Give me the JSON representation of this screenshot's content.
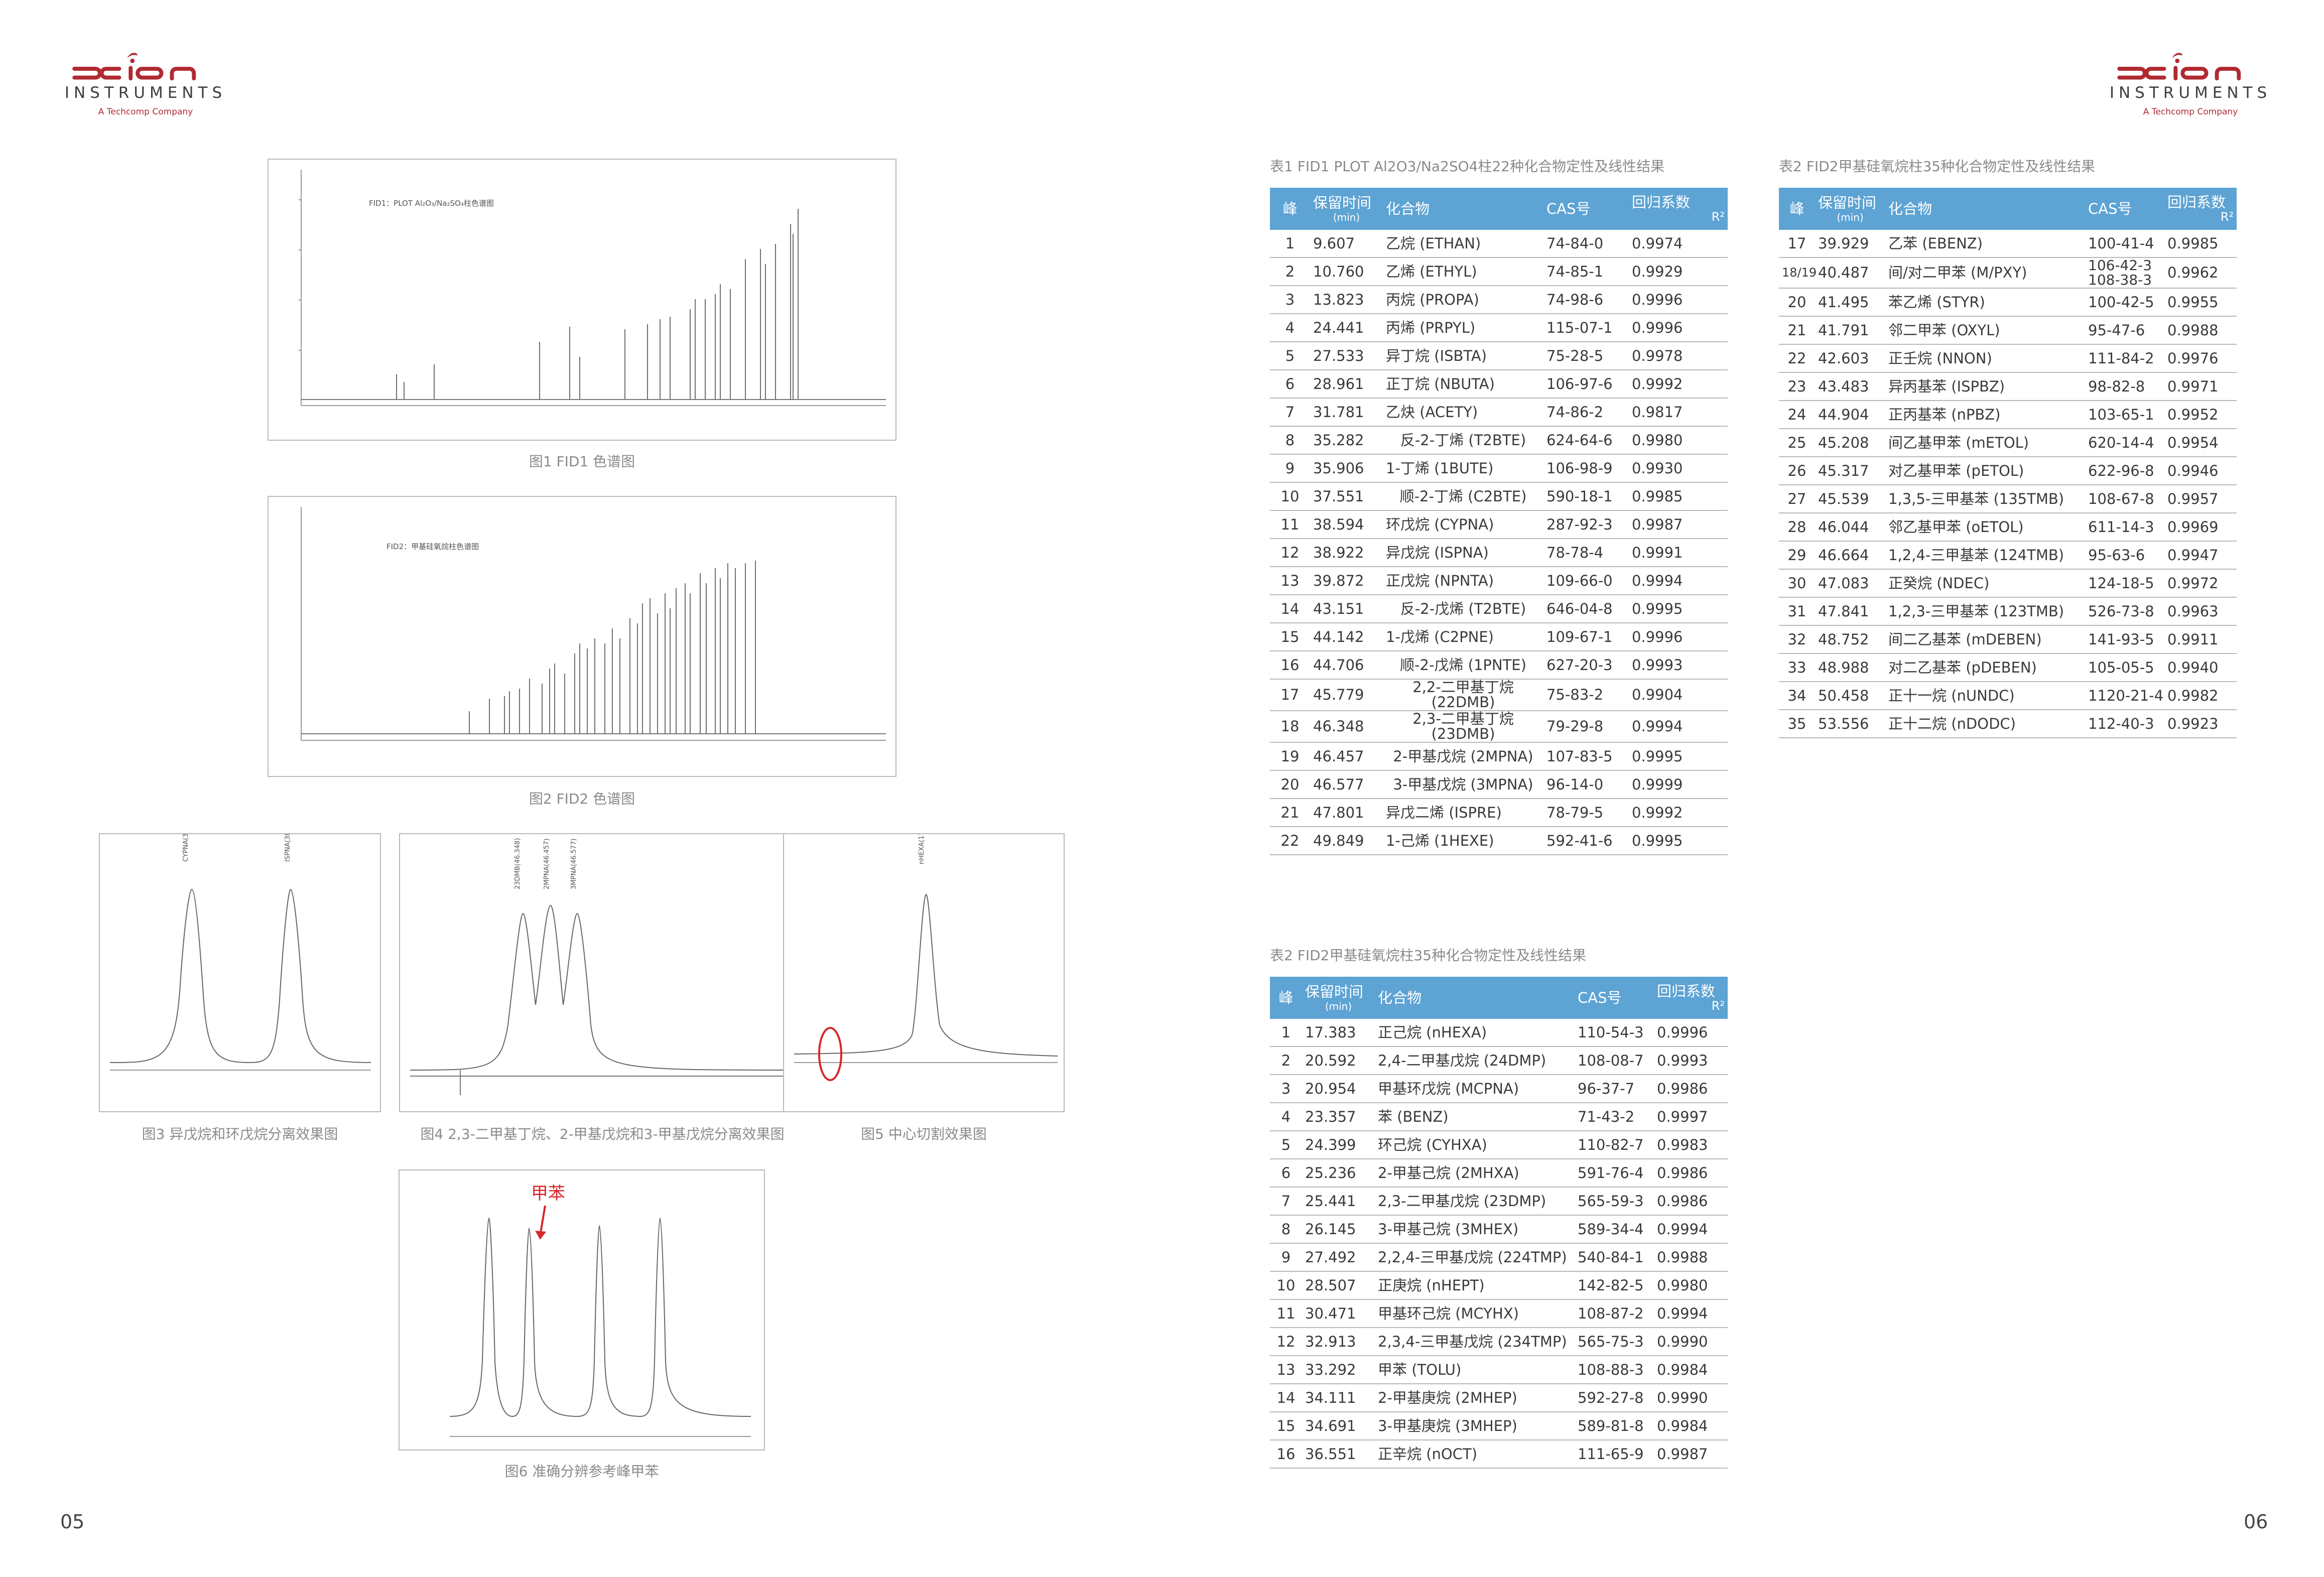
{
  "brand": {
    "name": "scion",
    "sub": "INSTRUMENTS",
    "tagline": "A Techcomp Company",
    "color": "#b02a32"
  },
  "pages": {
    "left": "05",
    "right": "06"
  },
  "figures": {
    "fig1": {
      "caption": "图1 FID1 色谱图",
      "label": "FID1：PLOT Al₂O₃/Na₂SO₄柱色谱图"
    },
    "fig2": {
      "caption": "图2 FID2 色谱图",
      "label": "FID2：甲基硅氧烷柱色谱图"
    },
    "fig3": {
      "caption": "图3 异戊烷和环戊烷分离效果图",
      "peaks": [
        "ISPNA(38.922)",
        "CYPNA(38.594)"
      ]
    },
    "fig4": {
      "caption": "图4 2,3-二甲基丁烷、2-甲基戊烷和3-甲基戊烷分离效果图",
      "peaks": [
        "23DMB(46.348)",
        "2MPNA(46.457)",
        "3MPNA(46.577)"
      ]
    },
    "fig5": {
      "caption": "图5 中心切割效果图",
      "peaks": [
        "nHEXA(17.383)"
      ]
    },
    "fig6": {
      "caption": "图6 准确分辨参考峰甲苯",
      "annotation": "甲苯"
    }
  },
  "table1": {
    "title": "表1  FID1 PLOT Al2O3/Na2SO4柱22种化合物定性及线性结果",
    "headers": {
      "peak": "峰",
      "rt": "保留时间",
      "rt_unit": "(min)",
      "compound": "化合物",
      "cas": "CAS号",
      "r2": "回归系数",
      "r2_sym": "R²"
    },
    "rows": [
      [
        "1",
        "9.607",
        "乙烷 (ETHAN)",
        "74-84-0",
        "0.9974"
      ],
      [
        "2",
        "10.760",
        "乙烯 (ETHYL)",
        "74-85-1",
        "0.9929"
      ],
      [
        "3",
        "13.823",
        "丙烷 (PROPA)",
        "74-98-6",
        "0.9996"
      ],
      [
        "4",
        "24.441",
        "丙烯 (PRPYL)",
        "115-07-1",
        "0.9996"
      ],
      [
        "5",
        "27.533",
        "异丁烷 (ISBTA)",
        "75-28-5",
        "0.9978"
      ],
      [
        "6",
        "28.961",
        "正丁烷 (NBUTA)",
        "106-97-6",
        "0.9992"
      ],
      [
        "7",
        "31.781",
        "乙炔 (ACETY)",
        "74-86-2",
        "0.9817"
      ],
      [
        "8",
        "35.282",
        "反-2-丁烯 (T2BTE)",
        "624-64-6",
        "0.9980"
      ],
      [
        "9",
        "35.906",
        "1-丁烯 (1BUTE)",
        "106-98-9",
        "0.9930"
      ],
      [
        "10",
        "37.551",
        "顺-2-丁烯 (C2BTE)",
        "590-18-1",
        "0.9985"
      ],
      [
        "11",
        "38.594",
        "环戊烷 (CYPNA)",
        "287-92-3",
        "0.9987"
      ],
      [
        "12",
        "38.922",
        "异戊烷 (ISPNA)",
        "78-78-4",
        "0.9991"
      ],
      [
        "13",
        "39.872",
        "正戊烷 (NPNTA)",
        "109-66-0",
        "0.9994"
      ],
      [
        "14",
        "43.151",
        "反-2-戊烯 (T2BTE)",
        "646-04-8",
        "0.9995"
      ],
      [
        "15",
        "44.142",
        "1-戊烯 (C2PNE)",
        "109-67-1",
        "0.9996"
      ],
      [
        "16",
        "44.706",
        "顺-2-戊烯 (1PNTE)",
        "627-20-3",
        "0.9993"
      ],
      [
        "17",
        "45.779",
        "2,2-二甲基丁烷 (22DMB)",
        "75-83-2",
        "0.9904"
      ],
      [
        "18",
        "46.348",
        "2,3-二甲基丁烷 (23DMB)",
        "79-29-8",
        "0.9994"
      ],
      [
        "19",
        "46.457",
        "2-甲基戊烷 (2MPNA)",
        "107-83-5",
        "0.9995"
      ],
      [
        "20",
        "46.577",
        "3-甲基戊烷 (3MPNA)",
        "96-14-0",
        "0.9999"
      ],
      [
        "21",
        "47.801",
        "异戊二烯 (ISPRE)",
        "78-79-5",
        "0.9992"
      ],
      [
        "22",
        "49.849",
        "1-己烯 (1HEXE)",
        "592-41-6",
        "0.9995"
      ]
    ]
  },
  "table2": {
    "title": "表2  FID2甲基硅氧烷柱35种化合物定性及线性结果",
    "headers": {
      "peak": "峰",
      "rt": "保留时间",
      "rt_unit": "(min)",
      "compound": "化合物",
      "cas": "CAS号",
      "r2": "回归系数",
      "r2_sym": "R²"
    },
    "rows": [
      [
        "1",
        "17.383",
        "正己烷 (nHEXA)",
        "110-54-3",
        "0.9996"
      ],
      [
        "2",
        "20.592",
        "2,4-二甲基戊烷 (24DMP)",
        "108-08-7",
        "0.9993"
      ],
      [
        "3",
        "20.954",
        "甲基环戊烷 (MCPNA)",
        "96-37-7",
        "0.9986"
      ],
      [
        "4",
        "23.357",
        "苯 (BENZ)",
        "71-43-2",
        "0.9997"
      ],
      [
        "5",
        "24.399",
        "环己烷 (CYHXA)",
        "110-82-7",
        "0.9983"
      ],
      [
        "6",
        "25.236",
        "2-甲基己烷 (2MHXA)",
        "591-76-4",
        "0.9986"
      ],
      [
        "7",
        "25.441",
        "2,3-二甲基戊烷 (23DMP)",
        "565-59-3",
        "0.9986"
      ],
      [
        "8",
        "26.145",
        "3-甲基己烷 (3MHEX)",
        "589-34-4",
        "0.9994"
      ],
      [
        "9",
        "27.492",
        "2,2,4-三甲基戊烷 (224TMP)",
        "540-84-1",
        "0.9988"
      ],
      [
        "10",
        "28.507",
        "正庚烷 (nHEPT)",
        "142-82-5",
        "0.9980"
      ],
      [
        "11",
        "30.471",
        "甲基环己烷 (MCYHX)",
        "108-87-2",
        "0.9994"
      ],
      [
        "12",
        "32.913",
        "2,3,4-三甲基戊烷 (234TMP)",
        "565-75-3",
        "0.9990"
      ],
      [
        "13",
        "33.292",
        "甲苯 (TOLU)",
        "108-88-3",
        "0.9984"
      ],
      [
        "14",
        "34.111",
        "2-甲基庚烷 (2MHEP)",
        "592-27-8",
        "0.9990"
      ],
      [
        "15",
        "34.691",
        "3-甲基庚烷 (3MHEP)",
        "589-81-8",
        "0.9984"
      ],
      [
        "16",
        "36.551",
        "正辛烷 (nOCT)",
        "111-65-9",
        "0.9987"
      ]
    ]
  },
  "table3": {
    "title": "表2  FID2甲基硅氧烷柱35种化合物定性及线性结果",
    "headers": {
      "peak": "峰",
      "rt": "保留时间",
      "rt_unit": "(min)",
      "compound": "化合物",
      "cas": "CAS号",
      "r2": "回归系数",
      "r2_sym": "R²"
    },
    "rows": [
      [
        "17",
        "39.929",
        "乙苯 (EBENZ)",
        "100-41-4",
        "0.9985"
      ],
      [
        "18/19",
        "40.487",
        "间/对二甲苯 (M/PXY)",
        "106-42-3 108-38-3",
        "0.9962"
      ],
      [
        "20",
        "41.495",
        "苯乙烯 (STYR)",
        "100-42-5",
        "0.9955"
      ],
      [
        "21",
        "41.791",
        "邻二甲苯 (OXYL)",
        "95-47-6",
        "0.9988"
      ],
      [
        "22",
        "42.603",
        "正壬烷 (NNON)",
        "111-84-2",
        "0.9976"
      ],
      [
        "23",
        "43.483",
        "异丙基苯 (ISPBZ)",
        "98-82-8",
        "0.9971"
      ],
      [
        "24",
        "44.904",
        "正丙基苯 (nPBZ)",
        "103-65-1",
        "0.9952"
      ],
      [
        "25",
        "45.208",
        "间乙基甲苯 (mETOL)",
        "620-14-4",
        "0.9954"
      ],
      [
        "26",
        "45.317",
        "对乙基甲苯 (pETOL)",
        "622-96-8",
        "0.9946"
      ],
      [
        "27",
        "45.539",
        "1,3,5-三甲基苯 (135TMB)",
        "108-67-8",
        "0.9957"
      ],
      [
        "28",
        "46.044",
        "邻乙基甲苯 (oETOL)",
        "611-14-3",
        "0.9969"
      ],
      [
        "29",
        "46.664",
        "1,2,4-三甲基苯 (124TMB)",
        "95-63-6",
        "0.9947"
      ],
      [
        "30",
        "47.083",
        "正癸烷 (NDEC)",
        "124-18-5",
        "0.9972"
      ],
      [
        "31",
        "47.841",
        "1,2,3-三甲基苯 (123TMB)",
        "526-73-8",
        "0.9963"
      ],
      [
        "32",
        "48.752",
        "间二乙基苯 (mDEBEN)",
        "141-93-5",
        "0.9911"
      ],
      [
        "33",
        "48.988",
        "对二乙基苯 (pDEBEN)",
        "105-05-5",
        "0.9940"
      ],
      [
        "34",
        "50.458",
        "正十一烷 (nUNDC)",
        "1120-21-4",
        "0.9982"
      ],
      [
        "35",
        "53.556",
        "正十二烷 (nDODC)",
        "112-40-3",
        "0.9923"
      ]
    ]
  }
}
